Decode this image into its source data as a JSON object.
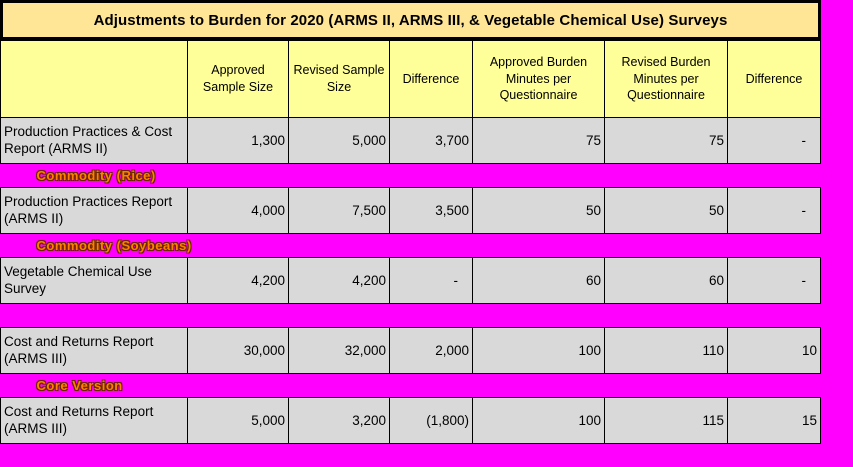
{
  "title": "Adjustments to Burden for 2020 (ARMS II, ARMS III, & Vegetable Chemical Use) Surveys",
  "colors": {
    "title_bg": "#FFE596",
    "header_bg": "#FFFF99",
    "data_row_bg": "#D9D9D9",
    "band_bg": "#FF00FF",
    "band_text": "#FF8000",
    "border": "#000000",
    "sheet_background": "#FF00FF"
  },
  "table": {
    "columns": [
      {
        "label": ""
      },
      {
        "label": "Approved\nSample Size"
      },
      {
        "label": "Revised Sample\nSize"
      },
      {
        "label": "Difference"
      },
      {
        "label": "Approved Burden\nMinutes per\nQuestionnaire"
      },
      {
        "label": "Revised Burden\nMinutes per\nQuestionnaire"
      },
      {
        "label": "Difference"
      }
    ],
    "rows": [
      {
        "type": "data",
        "label": "Production Practices & Cost\nReport (ARMS II)",
        "values": [
          "1,300",
          "5,000",
          "3,700",
          "75",
          "75",
          "-"
        ]
      },
      {
        "type": "band",
        "label": "Commodity (Rice)"
      },
      {
        "type": "data",
        "label": "Production Practices Report\n(ARMS II)",
        "values": [
          "4,000",
          "7,500",
          "3,500",
          "50",
          "50",
          "-"
        ]
      },
      {
        "type": "band",
        "label": "Commodity (Soybeans)"
      },
      {
        "type": "data",
        "label": "Vegetable Chemical Use\nSurvey",
        "values": [
          "4,200",
          "4,200",
          "-",
          "60",
          "60",
          "-"
        ]
      },
      {
        "type": "band",
        "label": ""
      },
      {
        "type": "data",
        "label": "Cost and Returns Report\n(ARMS III)",
        "values": [
          "30,000",
          "32,000",
          "2,000",
          "100",
          "110",
          "10"
        ]
      },
      {
        "type": "band",
        "label": "Core Version"
      },
      {
        "type": "data",
        "label": "Cost and Returns Report\n(ARMS III)",
        "values": [
          "5,000",
          "3,200",
          "(1,800)",
          "100",
          "115",
          "15"
        ]
      },
      {
        "type": "band",
        "label": ""
      }
    ]
  }
}
